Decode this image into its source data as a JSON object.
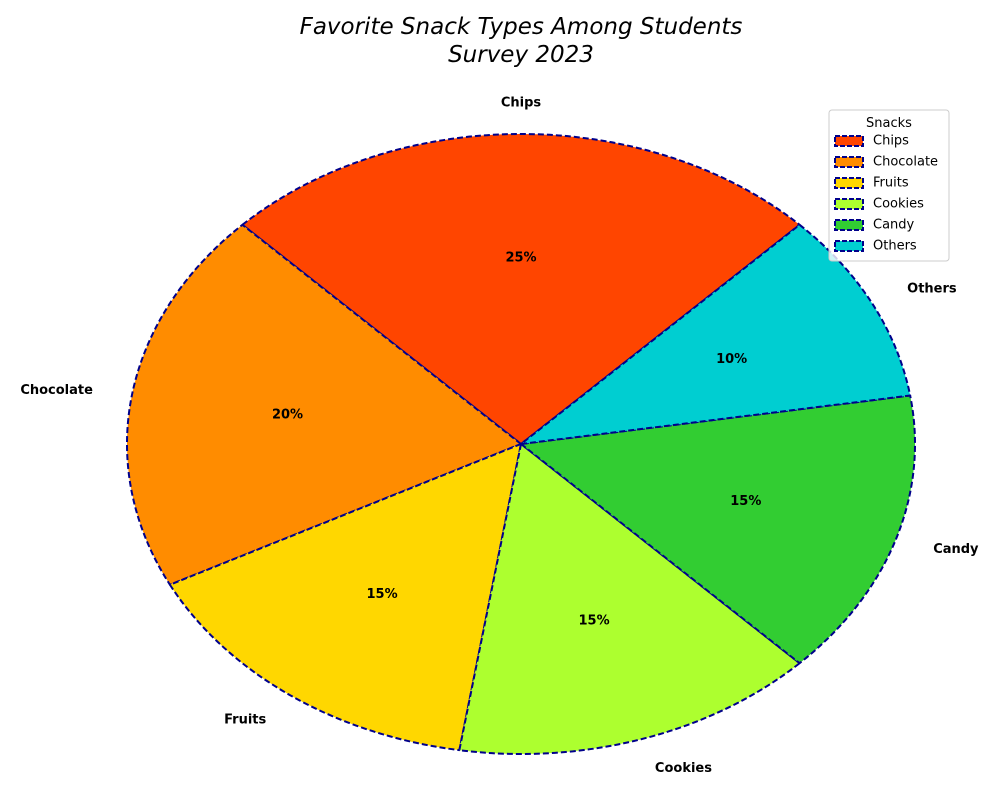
{
  "chart_data": {
    "type": "pie",
    "title_lines": [
      "Favorite Snack Types Among Students",
      "Survey 2023"
    ],
    "categories": [
      "Chips",
      "Chocolate",
      "Fruits",
      "Cookies",
      "Candy",
      "Others"
    ],
    "values": [
      25,
      20,
      15,
      15,
      15,
      10
    ],
    "value_labels": [
      "25%",
      "20%",
      "15%",
      "15%",
      "15%",
      "10%"
    ],
    "colors": [
      "#FF4500",
      "#FF8C00",
      "#FFD700",
      "#ADFF2F",
      "#32CD32",
      "#00CED1"
    ],
    "edge_color": "#00008B",
    "edge_style": "dashed",
    "start_angle_deg": 45,
    "direction": "counterclockwise",
    "legend": {
      "title": "Snacks",
      "entries": [
        "Chips",
        "Chocolate",
        "Fruits",
        "Cookies",
        "Candy",
        "Others"
      ],
      "placement": "top-right"
    }
  }
}
